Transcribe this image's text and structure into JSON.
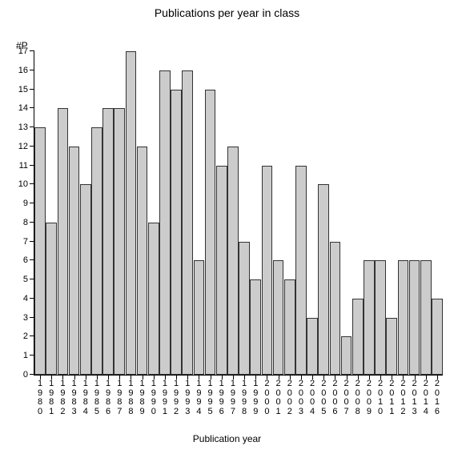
{
  "chart": {
    "type": "bar",
    "title": "Publications per year in class",
    "title_fontsize": 14,
    "ylabel": "#P",
    "xlabel": "Publication year",
    "label_fontsize": 12,
    "tick_fontsize": 11,
    "background_color": "#ffffff",
    "axis_color": "#000000",
    "bar_color": "#cccccc",
    "bar_border_color": "#333333",
    "ylim": [
      0,
      17
    ],
    "ytick_step": 1,
    "bar_width": 0.96,
    "categories": [
      "1980",
      "1981",
      "1982",
      "1983",
      "1984",
      "1985",
      "1986",
      "1987",
      "1988",
      "1989",
      "1990",
      "1991",
      "1992",
      "1993",
      "1994",
      "1995",
      "1996",
      "1997",
      "1998",
      "1999",
      "2000",
      "2001",
      "2002",
      "2003",
      "2004",
      "2005",
      "2006",
      "2007",
      "2008",
      "2009",
      "2010",
      "2011",
      "2012",
      "2013",
      "2014",
      "2016"
    ],
    "values": [
      13,
      8,
      14,
      12,
      10,
      13,
      14,
      14,
      17,
      12,
      8,
      16,
      15,
      16,
      6,
      15,
      11,
      12,
      7,
      5,
      11,
      6,
      5,
      11,
      3,
      10,
      7,
      2,
      4,
      6,
      6,
      3,
      6,
      6,
      6,
      4
    ]
  }
}
